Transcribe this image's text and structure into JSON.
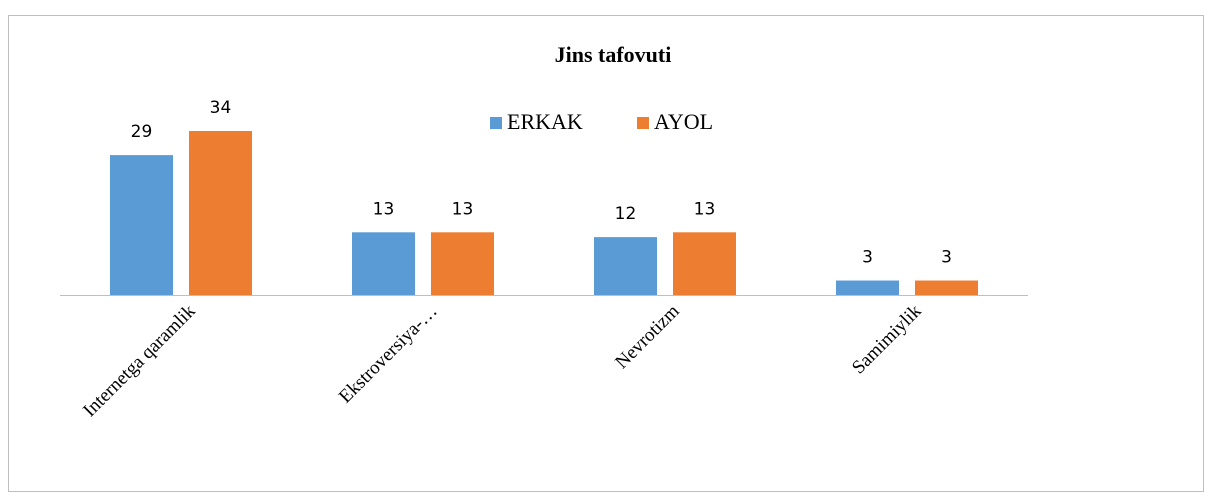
{
  "chart_data": {
    "type": "bar",
    "title": "Jins tafovuti",
    "categories": [
      "Internetga qaramlik",
      "Ekstroversiya-…",
      "Nevrotizm",
      "Samimiylik"
    ],
    "series": [
      {
        "name": "ERKAK",
        "color": "#5b9bd5",
        "values": [
          29,
          13,
          12,
          3
        ]
      },
      {
        "name": "AYOL",
        "color": "#ed7d31",
        "values": [
          34,
          13,
          13,
          3
        ]
      }
    ],
    "legend": "top"
  }
}
